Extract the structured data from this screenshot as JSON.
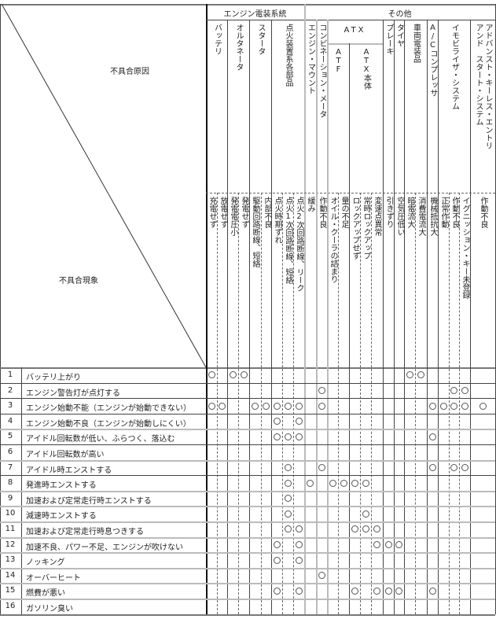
{
  "header": {
    "cause_label": "不具合原因",
    "symptom_label": "不具合現象",
    "groups": [
      {
        "label": "エンジン電装系統",
        "from": 0,
        "to": 8
      },
      {
        "label": "その他",
        "from": 9,
        "to": 24
      }
    ],
    "causes": [
      {
        "label": "バッテリ",
        "from": 0,
        "to": 1
      },
      {
        "label": "オルタネータ",
        "from": 2,
        "to": 3
      },
      {
        "label": "スタータ",
        "from": 4,
        "to": 5
      },
      {
        "label": "点火装置系各部品",
        "from": 6,
        "to": 8
      },
      {
        "label": "エンジン・マウント",
        "from": 9,
        "to": 9
      },
      {
        "label": "コンビネーション・メータ",
        "from": 10,
        "to": 10
      },
      {
        "label": "ATX",
        "from": 11,
        "to": 15,
        "sub": [
          {
            "label": "ATF",
            "from": 11,
            "to": 12
          },
          {
            "label": "ATX本体",
            "from": 13,
            "to": 15
          }
        ]
      },
      {
        "label": "ブレーキ",
        "from": 16,
        "to": 16
      },
      {
        "label": "タイヤ",
        "from": 17,
        "to": 17
      },
      {
        "label": "車両電装品",
        "from": 18,
        "to": 19
      },
      {
        "label": "A/Cコンプレッサ",
        "from": 20,
        "to": 20
      },
      {
        "label": "イモビライザ・システム",
        "from": 21,
        "to": 23
      },
      {
        "label": "アドバンスト・キーレス・エントリ\nアンド　スタート・システム",
        "from": 24,
        "to": 24
      }
    ],
    "phenomena": [
      "充電せず",
      "放電せず",
      "発電電圧小",
      "発電せず",
      "駆動回路断線、短絡",
      "内部不良",
      "点火時期ずれ",
      "点火1次回路断線、短絡",
      "点火2次回路断線、リーク",
      "緩み",
      "作動不良",
      "オイル・クーラの詰まり",
      "量の不足",
      "ロックアップせず",
      "常時ロックアップ",
      "変速点異常",
      "引きずり",
      "空気圧低い",
      "暗電流大",
      "消費電流大",
      "機械抵抗大",
      "正常作動",
      "作動不良",
      "イグニッション・キー未登録",
      "作動不良"
    ]
  },
  "mark_symbol": "○",
  "rows": [
    {
      "no": "1",
      "label": "バッテリ上がり",
      "marks": [
        0,
        2,
        3,
        18,
        19
      ]
    },
    {
      "no": "2",
      "label": "エンジン警告灯が点灯する",
      "marks": [
        10,
        22,
        23
      ]
    },
    {
      "no": "3",
      "label": "エンジン始動不能（エンジンが始動できない）",
      "marks": [
        0,
        1,
        4,
        5,
        6,
        7,
        8,
        10,
        20,
        21,
        22,
        23,
        24
      ]
    },
    {
      "no": "4",
      "label": "エンジン始動不良（エンジンが始動しにくい）",
      "marks": [
        6,
        8
      ]
    },
    {
      "no": "5",
      "label": "アイドル回転数が低い、ふらつく、落込む",
      "marks": [
        6,
        7,
        8,
        20
      ]
    },
    {
      "no": "6",
      "label": "アイドル回転数が高い",
      "marks": []
    },
    {
      "no": "7",
      "label": "アイドル時エンストする",
      "marks": [
        7,
        10,
        20,
        22,
        23
      ]
    },
    {
      "no": "8",
      "label": "発進時エンストする",
      "marks": [
        7,
        9,
        11,
        12,
        13,
        14
      ]
    },
    {
      "no": "9",
      "label": "加速および定常走行時エンストする",
      "marks": [
        7
      ]
    },
    {
      "no": "10",
      "label": "減速時エンストする",
      "marks": [
        7,
        14
      ]
    },
    {
      "no": "11",
      "label": "加速および定常走行時息つきする",
      "marks": [
        7,
        8,
        13,
        14,
        15
      ]
    },
    {
      "no": "12",
      "label": "加速不良、パワー不足、エンジンが吹けない",
      "marks": [
        6,
        8,
        15,
        16,
        17
      ]
    },
    {
      "no": "13",
      "label": "ノッキング",
      "marks": [
        6,
        8
      ]
    },
    {
      "no": "14",
      "label": "オーバーヒート",
      "marks": [
        10
      ]
    },
    {
      "no": "15",
      "label": "燃費が悪い",
      "marks": [
        6,
        8,
        13,
        15,
        16,
        17,
        20
      ]
    },
    {
      "no": "16",
      "label": "ガソリン臭い",
      "marks": []
    }
  ]
}
